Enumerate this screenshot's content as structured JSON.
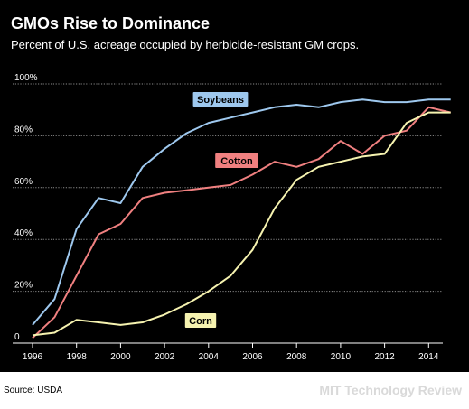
{
  "header": {
    "title": "GMOs Rise to Dominance",
    "subtitle": "Percent of U.S. acreage occupied by herbicide-resistant GM crops."
  },
  "footer": {
    "source": "Source: USDA",
    "brand": "MIT Technology Review"
  },
  "chart_data": {
    "type": "line",
    "title": "GMOs Rise to Dominance",
    "subtitle": "Percent of U.S. acreage occupied by herbicide-resistant GM crops.",
    "xlabel": "",
    "ylabel": "",
    "x": [
      1996,
      1997,
      1998,
      1999,
      2000,
      2001,
      2002,
      2003,
      2004,
      2005,
      2006,
      2007,
      2008,
      2009,
      2010,
      2011,
      2012,
      2013,
      2014,
      2015
    ],
    "x_ticks": [
      "1996",
      "1998",
      "2000",
      "2002",
      "2004",
      "2006",
      "2008",
      "2010",
      "2012",
      "2014"
    ],
    "y_ticks": [
      "0",
      "20%",
      "40%",
      "60%",
      "80%",
      "100%"
    ],
    "ylim": [
      0,
      100
    ],
    "grid": true,
    "series": [
      {
        "name": "Soybeans",
        "color": "#9ec8ee",
        "values": [
          7,
          17,
          44,
          56,
          54,
          68,
          75,
          81,
          85,
          87,
          89,
          91,
          92,
          91,
          93,
          94,
          93,
          93,
          94,
          94
        ]
      },
      {
        "name": "Cotton",
        "color": "#f08080",
        "values": [
          2,
          10,
          26,
          42,
          46,
          56,
          58,
          59,
          60,
          61,
          65,
          70,
          68,
          71,
          78,
          73,
          80,
          82,
          91,
          89
        ]
      },
      {
        "name": "Corn",
        "color": "#f6f3b0",
        "values": [
          3,
          4,
          9,
          8,
          7,
          8,
          11,
          15,
          20,
          26,
          36,
          52,
          63,
          68,
          70,
          72,
          73,
          85,
          89,
          89
        ]
      }
    ]
  }
}
